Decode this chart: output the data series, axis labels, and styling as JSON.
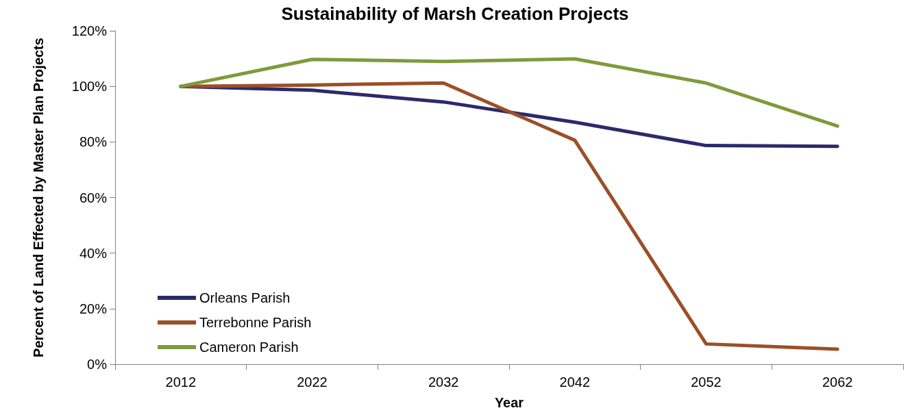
{
  "chart_data": {
    "type": "line",
    "title": "Sustainability of Marsh Creation Projects",
    "xlabel": "Year",
    "ylabel": "Percent of Land Effected by Master Plan Projects",
    "categories": [
      "2012",
      "2022",
      "2032",
      "2042",
      "2052",
      "2062"
    ],
    "series": [
      {
        "name": "Orleans Parish",
        "color": "#2b2a6b",
        "values": [
          100,
          98.6,
          94.4,
          87.1,
          78.7,
          78.4
        ]
      },
      {
        "name": "Terrebonne Parish",
        "color": "#9b4f28",
        "values": [
          100,
          100.5,
          101.2,
          80.6,
          7.3,
          5.4
        ]
      },
      {
        "name": "Cameron Parish",
        "color": "#7f9a3c",
        "values": [
          100,
          109.7,
          109,
          109.9,
          101.2,
          85.7
        ]
      }
    ],
    "ylim": [
      0,
      120
    ],
    "yticks": [
      {
        "value": 0,
        "label": "0%"
      },
      {
        "value": 20,
        "label": "20%"
      },
      {
        "value": 40,
        "label": "40%"
      },
      {
        "value": 60,
        "label": "60%"
      },
      {
        "value": 80,
        "label": "80%"
      },
      {
        "value": 100,
        "label": "100%"
      },
      {
        "value": 120,
        "label": "120%"
      }
    ],
    "grid": false,
    "legend": "bottom left",
    "marker": "none",
    "line_style": "solid"
  }
}
